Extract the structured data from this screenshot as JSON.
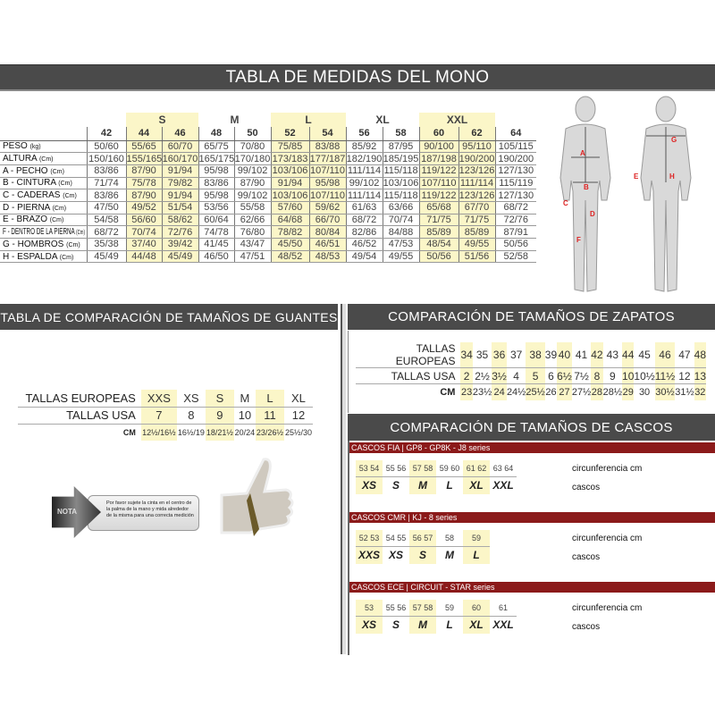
{
  "title": "TABLA DE MEDIDAS DEL MONO",
  "mono": {
    "size_groups": [
      {
        "label": "S",
        "cols": [
          "44",
          "46"
        ]
      },
      {
        "label": "M",
        "cols": [
          "48",
          "50"
        ]
      },
      {
        "label": "L",
        "cols": [
          "52",
          "54"
        ]
      },
      {
        "label": "XL",
        "cols": [
          "56",
          "58"
        ]
      },
      {
        "label": "XXL",
        "cols": [
          "60",
          "62"
        ]
      }
    ],
    "columns": [
      "42",
      "44",
      "46",
      "48",
      "50",
      "52",
      "54",
      "56",
      "58",
      "60",
      "62",
      "64"
    ],
    "highlighted": [
      "44",
      "46",
      "52",
      "54",
      "60",
      "62"
    ],
    "rows": [
      {
        "label": "PESO",
        "unit": "(kg)",
        "values": [
          "50/60",
          "55/65",
          "60/70",
          "65/75",
          "70/80",
          "75/85",
          "83/88",
          "85/92",
          "87/95",
          "90/100",
          "95/110",
          "105/115"
        ]
      },
      {
        "label": "ALTURA",
        "unit": "(Cm)",
        "values": [
          "150/160",
          "155/165",
          "160/170",
          "165/175",
          "170/180",
          "173/183",
          "177/187",
          "182/190",
          "185/195",
          "187/198",
          "190/200",
          "190/200"
        ]
      },
      {
        "label": "A - PECHO",
        "unit": "(Cm)",
        "values": [
          "83/86",
          "87/90",
          "91/94",
          "95/98",
          "99/102",
          "103/106",
          "107/110",
          "111/114",
          "115/118",
          "119/122",
          "123/126",
          "127/130"
        ]
      },
      {
        "label": "B - CINTURA",
        "unit": "(Cm)",
        "values": [
          "71/74",
          "75/78",
          "79/82",
          "83/86",
          "87/90",
          "91/94",
          "95/98",
          "99/102",
          "103/106",
          "107/110",
          "111/114",
          "115/119"
        ]
      },
      {
        "label": "C - CADERAS",
        "unit": "(Cm)",
        "values": [
          "83/86",
          "87/90",
          "91/94",
          "95/98",
          "99/102",
          "103/106",
          "107/110",
          "111/114",
          "115/118",
          "119/122",
          "123/126",
          "127/130"
        ]
      },
      {
        "label": "D - PIERNA",
        "unit": "(Cm)",
        "values": [
          "47/50",
          "49/52",
          "51/54",
          "53/56",
          "55/58",
          "57/60",
          "59/62",
          "61/63",
          "63/66",
          "65/68",
          "67/70",
          "68/72"
        ]
      },
      {
        "label": "E - BRAZO",
        "unit": "(Cm)",
        "values": [
          "54/58",
          "56/60",
          "58/62",
          "60/64",
          "62/66",
          "64/68",
          "66/70",
          "68/72",
          "70/74",
          "71/75",
          "71/75",
          "72/76"
        ]
      },
      {
        "label": "F - DENTRO DE LA PIERNA",
        "unit": "(Cm)",
        "values": [
          "68/72",
          "70/74",
          "72/76",
          "74/78",
          "76/80",
          "78/82",
          "80/84",
          "82/86",
          "84/88",
          "85/89",
          "85/89",
          "87/91"
        ]
      },
      {
        "label": "G - HOMBROS",
        "unit": "(Cm)",
        "values": [
          "35/38",
          "37/40",
          "39/42",
          "41/45",
          "43/47",
          "45/50",
          "46/51",
          "46/52",
          "47/53",
          "48/54",
          "49/55",
          "50/56"
        ]
      },
      {
        "label": "H - ESPALDA",
        "unit": "(Cm)",
        "values": [
          "45/49",
          "44/48",
          "45/49",
          "46/50",
          "47/51",
          "48/52",
          "48/53",
          "49/54",
          "49/55",
          "50/56",
          "51/56",
          "52/58"
        ]
      }
    ],
    "figure_labels": [
      "A",
      "B",
      "C",
      "D",
      "F",
      "G",
      "E",
      "H"
    ]
  },
  "gloves": {
    "title": "TABLA DE COMPARACIÓN DE TAMAÑOS DE GUANTES",
    "rows": [
      {
        "label": "TALLAS EUROPEAS",
        "values": [
          "XXS",
          "XS",
          "S",
          "M",
          "L",
          "XL"
        ]
      },
      {
        "label": "TALLAS USA",
        "values": [
          "7",
          "8",
          "9",
          "10",
          "11",
          "12"
        ]
      },
      {
        "label": "CM",
        "values": [
          "12½/16½",
          "16½/19",
          "18/21½",
          "20/24",
          "23/26½",
          "25½/30"
        ]
      }
    ],
    "highlighted_cols": [
      0,
      2,
      4
    ],
    "nota_label": "NOTA",
    "nota_text": "Por favor sujete la cinta en el centro de la palma de la mano y mida alrededor de la misma para una correcta medición"
  },
  "shoes": {
    "title": "COMPARACIÓN DE TAMAÑOS DE ZAPATOS",
    "rows": [
      {
        "label": "TALLAS EUROPEAS",
        "values": [
          "34",
          "35",
          "36",
          "37",
          "38",
          "39",
          "40",
          "41",
          "42",
          "43",
          "44",
          "45",
          "46",
          "47",
          "48"
        ]
      },
      {
        "label": "TALLAS USA",
        "values": [
          "2",
          "2½",
          "3½",
          "4",
          "5",
          "6",
          "6½",
          "7½",
          "8",
          "9",
          "10",
          "10½",
          "11½",
          "12",
          "13"
        ]
      },
      {
        "label": "CM",
        "values": [
          "23",
          "23½",
          "24",
          "24½",
          "25½",
          "26",
          "27",
          "27½",
          "28",
          "28½",
          "29",
          "30",
          "30½",
          "31½",
          "32"
        ]
      }
    ],
    "highlighted_cols": [
      0,
      2,
      4,
      6,
      8,
      10,
      12,
      14
    ]
  },
  "helmets": {
    "title": "COMPARACIÓN DE TAMAÑOS DE CASCOS",
    "circ_label": "circunferencia cm",
    "size_label": "cascos",
    "accent": "#8b1a1a",
    "groups": [
      {
        "name": "CASCOS FIA  |  GP8 - GP8K - J8 series",
        "cells": [
          {
            "nums": "53 54",
            "size": "XS",
            "y": true
          },
          {
            "nums": "55 56",
            "size": "S",
            "y": false
          },
          {
            "nums": "57 58",
            "size": "M",
            "y": true
          },
          {
            "nums": "59 60",
            "size": "L",
            "y": false
          },
          {
            "nums": "61 62",
            "size": "XL",
            "y": true
          },
          {
            "nums": "63 64",
            "size": "XXL",
            "y": false
          }
        ]
      },
      {
        "name": "CASCOS CMR  |  KJ - 8 series",
        "cells": [
          {
            "nums": "52 53",
            "size": "XXS",
            "y": true
          },
          {
            "nums": "54 55",
            "size": "XS",
            "y": false
          },
          {
            "nums": "56 57",
            "size": "S",
            "y": true
          },
          {
            "nums": "58",
            "size": "M",
            "y": false
          },
          {
            "nums": "59",
            "size": "L",
            "y": true
          }
        ]
      },
      {
        "name": "CASCOS ECE  |  CIRCUIT - STAR series",
        "cells": [
          {
            "nums": "53",
            "size": "XS",
            "y": true
          },
          {
            "nums": "55 56",
            "size": "S",
            "y": false
          },
          {
            "nums": "57 58",
            "size": "M",
            "y": true
          },
          {
            "nums": "59",
            "size": "L",
            "y": false
          },
          {
            "nums": "60",
            "size": "XL",
            "y": true
          },
          {
            "nums": "61",
            "size": "XXL",
            "y": false
          }
        ]
      }
    ]
  }
}
